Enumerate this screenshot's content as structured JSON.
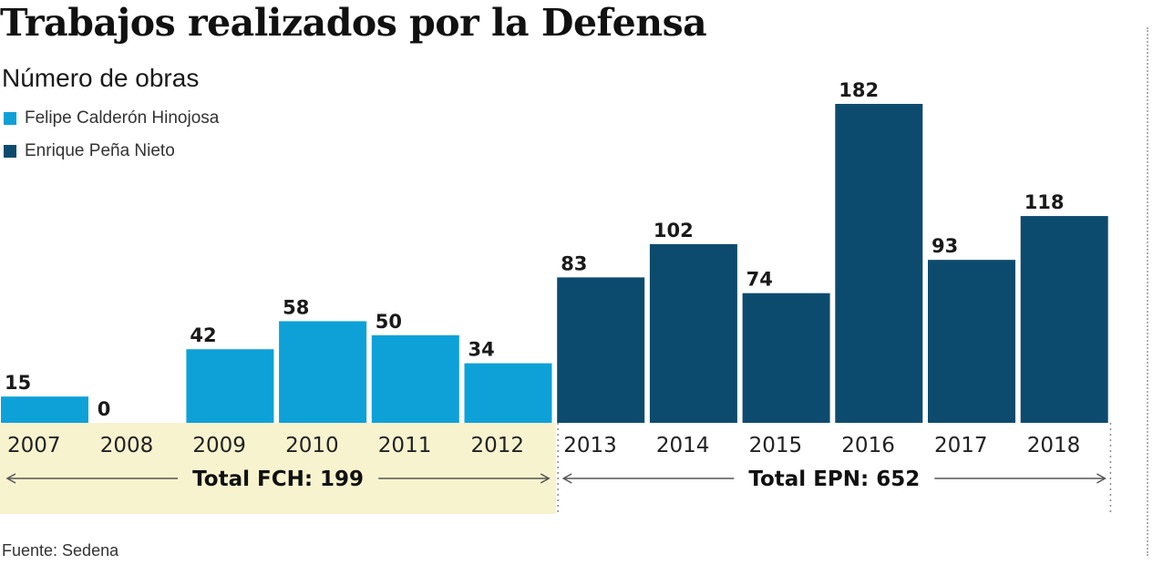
{
  "title": "Trabajos realizados por la Defensa",
  "subtitle": "Número de obras",
  "source": "Fuente: Sedena",
  "legend": [
    {
      "label": "Felipe Calderón Hinojosa",
      "color": "#0ea1d8"
    },
    {
      "label": "Enrique Peña Nieto",
      "color": "#0d4b6e"
    }
  ],
  "colors": {
    "fch": "#0ea1d8",
    "epn": "#0d4b6e",
    "fch_band": "#f8f3cf",
    "arrow": "#555555"
  },
  "chart_data": {
    "type": "bar",
    "title": "Trabajos realizados por la Defensa",
    "ylabel": "Número de obras",
    "xlabel": "",
    "categories": [
      "2007",
      "2008",
      "2009",
      "2010",
      "2011",
      "2012",
      "2013",
      "2014",
      "2015",
      "2016",
      "2017",
      "2018"
    ],
    "series": [
      {
        "name": "Felipe Calderón Hinojosa",
        "values": [
          15,
          0,
          42,
          58,
          50,
          34,
          null,
          null,
          null,
          null,
          null,
          null
        ]
      },
      {
        "name": "Enrique Peña Nieto",
        "values": [
          null,
          null,
          null,
          null,
          null,
          null,
          83,
          102,
          74,
          182,
          93,
          118
        ]
      }
    ],
    "ylim": [
      0,
      182
    ],
    "grid": false,
    "legend_position": "top-left",
    "groups": [
      {
        "label": "Total FCH: 199",
        "from": "2007",
        "to": "2012"
      },
      {
        "label": "Total EPN: 652",
        "from": "2013",
        "to": "2018"
      }
    ]
  }
}
